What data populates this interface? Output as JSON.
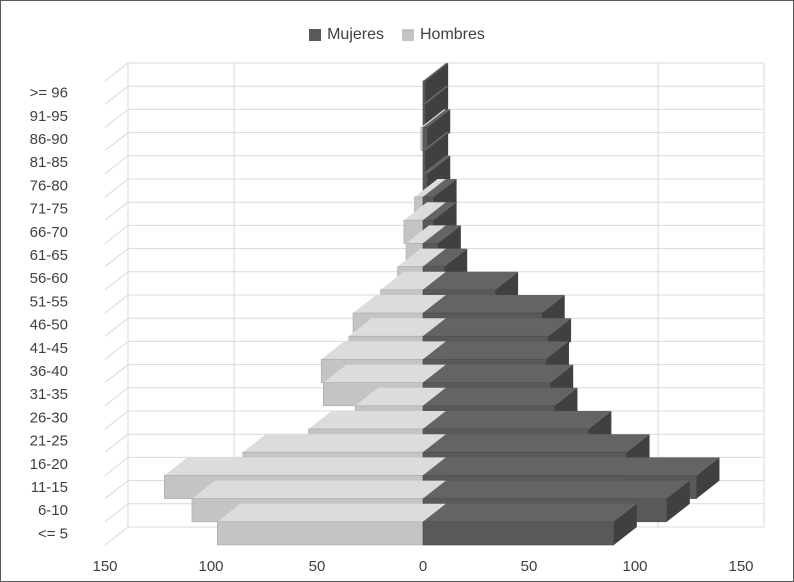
{
  "chart_data": {
    "type": "bar",
    "orientation": "horizontal",
    "style": "3d-population-pyramid",
    "categories": [
      ">= 96",
      "91-95",
      "86-90",
      "81-85",
      "76-80",
      "71-75",
      "66-70",
      "61-65",
      "56-60",
      "51-55",
      "46-50",
      "41-45",
      "36-40",
      "31-35",
      "26-30",
      "21-25",
      "16-20",
      "11-15",
      "6-10",
      "<= 5"
    ],
    "series": [
      {
        "name": "Mujeres",
        "color": "#595959",
        "side": "right",
        "values": [
          1,
          1,
          2,
          1,
          2,
          5,
          5,
          7,
          10,
          34,
          56,
          59,
          58,
          60,
          62,
          78,
          96,
          129,
          115,
          90
        ]
      },
      {
        "name": "Hombres",
        "color": "#c4c4c4",
        "side": "left",
        "values": [
          0,
          0,
          1,
          0,
          0,
          4,
          9,
          8,
          12,
          20,
          33,
          35,
          48,
          47,
          32,
          54,
          85,
          122,
          109,
          97
        ]
      }
    ],
    "x_ticks": [
      "150",
      "100",
      "50",
      "0",
      "50",
      "100",
      "150"
    ],
    "xlim": [
      -150,
      150
    ],
    "legend_position": "top",
    "grid": true
  }
}
